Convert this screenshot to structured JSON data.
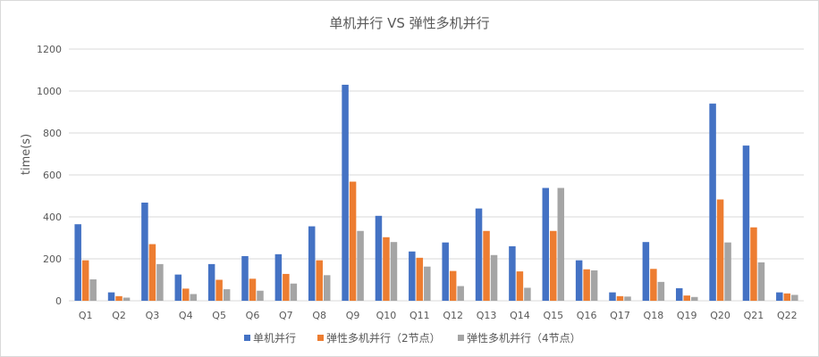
{
  "chart_data": {
    "type": "bar",
    "title": "单机并行 VS 弹性多机并行",
    "xlabel": "",
    "ylabel": "time(s)",
    "ylim": [
      0,
      1200
    ],
    "yticks": [
      0,
      200,
      400,
      600,
      800,
      1000,
      1200
    ],
    "grid": true,
    "legend_position": "bottom",
    "categories": [
      "Q1",
      "Q2",
      "Q3",
      "Q4",
      "Q5",
      "Q6",
      "Q7",
      "Q8",
      "Q9",
      "Q10",
      "Q11",
      "Q12",
      "Q13",
      "Q14",
      "Q15",
      "Q16",
      "Q17",
      "Q18",
      "Q19",
      "Q20",
      "Q21",
      "Q22"
    ],
    "series": [
      {
        "name": "单机并行",
        "color": "#4472C4",
        "values": [
          365,
          40,
          468,
          125,
          175,
          213,
          222,
          355,
          1030,
          405,
          235,
          278,
          440,
          260,
          538,
          193,
          40,
          280,
          60,
          940,
          740,
          40
        ]
      },
      {
        "name": "弹性多机并行（2节点）",
        "color": "#ED7D31",
        "values": [
          193,
          22,
          270,
          58,
          100,
          105,
          128,
          193,
          568,
          303,
          205,
          142,
          333,
          140,
          333,
          150,
          22,
          152,
          25,
          483,
          350,
          35
        ]
      },
      {
        "name": "弹性多机并行（4节点）",
        "color": "#A5A5A5",
        "values": [
          102,
          15,
          175,
          32,
          55,
          48,
          82,
          122,
          333,
          280,
          163,
          70,
          218,
          62,
          538,
          145,
          20,
          90,
          18,
          278,
          183,
          28
        ]
      }
    ]
  }
}
